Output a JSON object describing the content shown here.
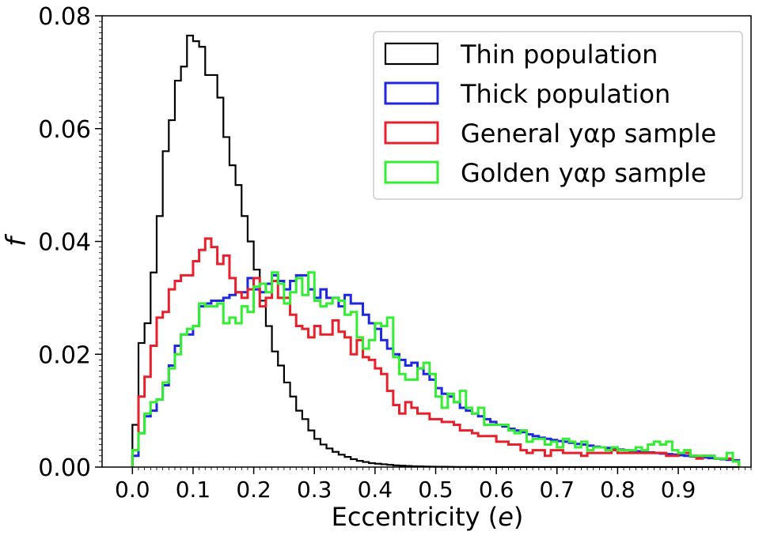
{
  "chart_data": {
    "type": "line",
    "step_histogram": true,
    "xlabel": "Eccentricity (",
    "xlabel_var": "e",
    "xlabel_close": ")",
    "ylabel": "f",
    "xlim": [
      -0.05,
      1.02
    ],
    "ylim": [
      0,
      0.08
    ],
    "xticks": [
      "0.0",
      "0.1",
      "0.2",
      "0.3",
      "0.4",
      "0.5",
      "0.6",
      "0.7",
      "0.8",
      "0.9"
    ],
    "yticks": [
      "0.00",
      "0.02",
      "0.04",
      "0.06",
      "0.08"
    ],
    "grid": false,
    "legend_position": "top-right",
    "bin_edges_start": 0.0,
    "bin_width": 0.01,
    "series": [
      {
        "name": "Thin population",
        "color": "#000000",
        "values": [
          0.0075,
          0.022,
          0.0255,
          0.0345,
          0.0445,
          0.056,
          0.0615,
          0.0685,
          0.071,
          0.0765,
          0.0755,
          0.0745,
          0.0695,
          0.0695,
          0.0655,
          0.0585,
          0.0535,
          0.05,
          0.0445,
          0.04,
          0.035,
          0.0295,
          0.025,
          0.0205,
          0.018,
          0.015,
          0.0125,
          0.01,
          0.0085,
          0.0065,
          0.005,
          0.004,
          0.0033,
          0.0027,
          0.0022,
          0.0018,
          0.0014,
          0.0011,
          0.0009,
          0.0007,
          0.0006,
          0.0005,
          0.0004,
          0.0003,
          0.00025,
          0.0002,
          0.00015,
          0.00012,
          0.0001,
          8e-05,
          6e-05,
          5e-05,
          4e-05,
          3e-05,
          3e-05,
          2e-05,
          2e-05,
          1e-05,
          1e-05,
          1e-05,
          1e-05,
          1e-05,
          1e-05,
          1e-05,
          1e-05,
          1e-05,
          1e-05,
          1e-05,
          1e-05,
          1e-05,
          1e-05,
          1e-05,
          1e-05,
          1e-05,
          1e-05,
          1e-05,
          1e-05,
          1e-05,
          1e-05,
          1e-05,
          1e-05,
          1e-05,
          1e-05,
          1e-05,
          1e-05,
          1e-05,
          1e-05,
          1e-05,
          1e-05,
          1e-05,
          1e-05,
          1e-05,
          1e-05,
          1e-05,
          1e-05,
          1e-05,
          1e-05,
          1e-05,
          1e-05,
          1e-05
        ]
      },
      {
        "name": "Thick population",
        "color": "#1f28e0",
        "values": [
          0.002,
          0.006,
          0.009,
          0.01,
          0.012,
          0.0145,
          0.018,
          0.0215,
          0.0235,
          0.0235,
          0.025,
          0.0285,
          0.029,
          0.0295,
          0.0295,
          0.03,
          0.0305,
          0.031,
          0.031,
          0.0335,
          0.0315,
          0.031,
          0.0325,
          0.034,
          0.033,
          0.0315,
          0.033,
          0.034,
          0.034,
          0.0315,
          0.03,
          0.0315,
          0.03,
          0.03,
          0.0285,
          0.0305,
          0.029,
          0.029,
          0.027,
          0.0255,
          0.0245,
          0.0225,
          0.021,
          0.02,
          0.019,
          0.018,
          0.0185,
          0.0175,
          0.0165,
          0.0155,
          0.014,
          0.013,
          0.0125,
          0.0115,
          0.0105,
          0.01,
          0.0095,
          0.009,
          0.0085,
          0.008,
          0.0075,
          0.0072,
          0.0068,
          0.0065,
          0.0062,
          0.0058,
          0.0055,
          0.0052,
          0.005,
          0.0048,
          0.0046,
          0.0045,
          0.0043,
          0.0041,
          0.004,
          0.0038,
          0.0036,
          0.0035,
          0.0034,
          0.0032,
          0.0031,
          0.003,
          0.0029,
          0.0028,
          0.0027,
          0.0026,
          0.0025,
          0.0024,
          0.0023,
          0.0022,
          0.0021,
          0.002,
          0.0019,
          0.0018,
          0.0017,
          0.0016,
          0.0015,
          0.0014,
          0.0013,
          0.0012
        ]
      },
      {
        "name": "General yαp sample",
        "color": "#e8202c",
        "values": [
          0.003,
          0.0125,
          0.016,
          0.0215,
          0.0265,
          0.0275,
          0.0315,
          0.033,
          0.034,
          0.034,
          0.0365,
          0.0385,
          0.0405,
          0.039,
          0.036,
          0.0375,
          0.0335,
          0.031,
          0.03,
          0.0315,
          0.0335,
          0.0285,
          0.03,
          0.033,
          0.03,
          0.03,
          0.027,
          0.025,
          0.0245,
          0.023,
          0.025,
          0.0235,
          0.0235,
          0.026,
          0.024,
          0.023,
          0.02,
          0.0225,
          0.0195,
          0.019,
          0.0175,
          0.0165,
          0.0135,
          0.011,
          0.0095,
          0.0115,
          0.0105,
          0.0095,
          0.0095,
          0.0085,
          0.0085,
          0.008,
          0.008,
          0.0075,
          0.0065,
          0.0065,
          0.006,
          0.0055,
          0.0055,
          0.0055,
          0.0045,
          0.0045,
          0.004,
          0.004,
          0.003,
          0.0025,
          0.003,
          0.003,
          0.002,
          0.003,
          0.003,
          0.0025,
          0.0025,
          0.0025,
          0.002,
          0.0025,
          0.0025,
          0.0025,
          0.0025,
          0.003,
          0.0025,
          0.0025,
          0.0025,
          0.0025,
          0.0025,
          0.0025,
          0.0025,
          0.0025,
          0.002,
          0.002,
          0.0025,
          0.0025,
          0.002,
          0.0015,
          0.002,
          0.002,
          0.0015,
          0.0015,
          0.0015,
          0.001
        ]
      },
      {
        "name": "Golden yαp sample",
        "color": "#33ee33",
        "values": [
          0.003,
          0.006,
          0.0095,
          0.0115,
          0.012,
          0.015,
          0.0175,
          0.02,
          0.0235,
          0.0245,
          0.025,
          0.029,
          0.0285,
          0.0285,
          0.029,
          0.0255,
          0.0265,
          0.0255,
          0.0285,
          0.0275,
          0.032,
          0.0325,
          0.031,
          0.0345,
          0.0325,
          0.029,
          0.031,
          0.0335,
          0.0305,
          0.0345,
          0.0295,
          0.0285,
          0.029,
          0.03,
          0.0295,
          0.027,
          0.0275,
          0.023,
          0.021,
          0.0225,
          0.0255,
          0.025,
          0.0265,
          0.0195,
          0.0165,
          0.0155,
          0.0155,
          0.0175,
          0.0185,
          0.0165,
          0.0125,
          0.0105,
          0.013,
          0.0115,
          0.0135,
          0.0105,
          0.0095,
          0.0105,
          0.0075,
          0.0075,
          0.0075,
          0.0075,
          0.0065,
          0.006,
          0.0065,
          0.0045,
          0.005,
          0.005,
          0.004,
          0.0045,
          0.0035,
          0.005,
          0.0045,
          0.0035,
          0.0045,
          0.003,
          0.0035,
          0.0035,
          0.003,
          0.0035,
          0.003,
          0.003,
          0.003,
          0.0035,
          0.003,
          0.004,
          0.0045,
          0.004,
          0.0045,
          0.003,
          0.0025,
          0.003,
          0.002,
          0.002,
          0.002,
          0.002,
          0.0015,
          0.0015,
          0.0025,
          0.001
        ]
      }
    ]
  }
}
